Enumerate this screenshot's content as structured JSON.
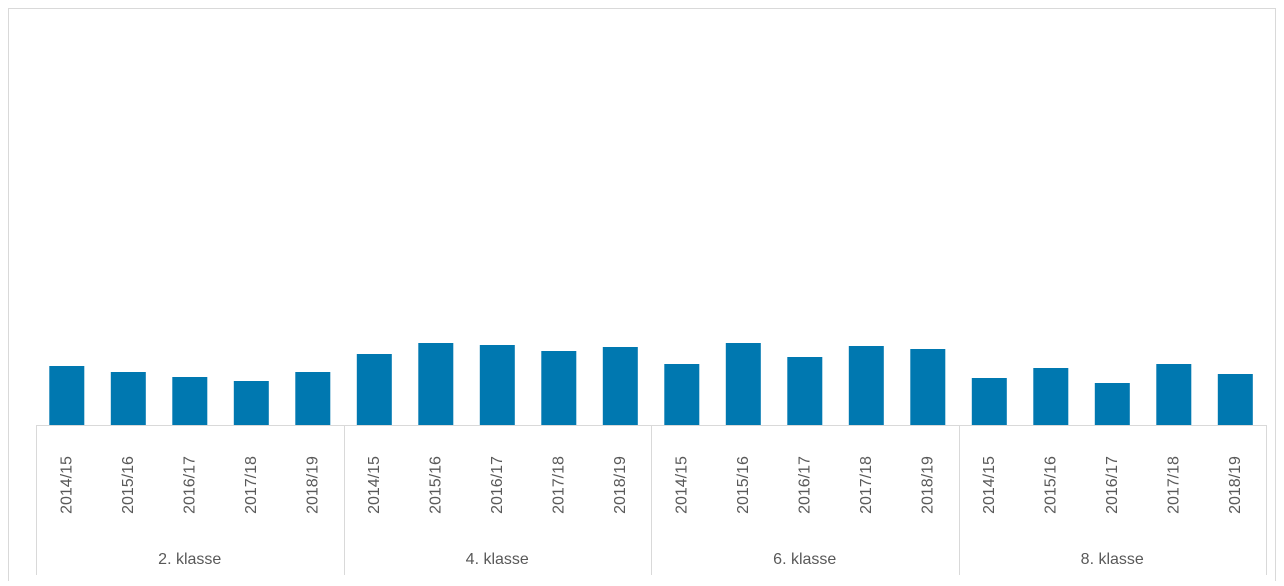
{
  "chart_data": {
    "type": "bar",
    "grid": false,
    "legend": "none",
    "colors": {
      "bar": "#0078B0",
      "axis": "#D9D9D9",
      "text": "#595959"
    },
    "groups": [
      {
        "label": "2. klasse",
        "categories": [
          "2014/15",
          "2015/16",
          "2016/17",
          "2017/18",
          "2018/19"
        ],
        "values": [
          59,
          53,
          48,
          44,
          53
        ]
      },
      {
        "label": "4. klasse",
        "categories": [
          "2014/15",
          "2015/16",
          "2016/17",
          "2017/18",
          "2018/19"
        ],
        "values": [
          71,
          82,
          80,
          74,
          78
        ]
      },
      {
        "label": "6. klasse",
        "categories": [
          "2014/15",
          "2015/16",
          "2016/17",
          "2017/18",
          "2018/19"
        ],
        "values": [
          61,
          82,
          68,
          79,
          76
        ]
      },
      {
        "label": "8. klasse",
        "categories": [
          "2014/15",
          "2015/16",
          "2016/17",
          "2017/18",
          "2018/19"
        ],
        "values": [
          47,
          57,
          42,
          61,
          51
        ]
      }
    ],
    "ylim": [
      0,
      400
    ]
  }
}
